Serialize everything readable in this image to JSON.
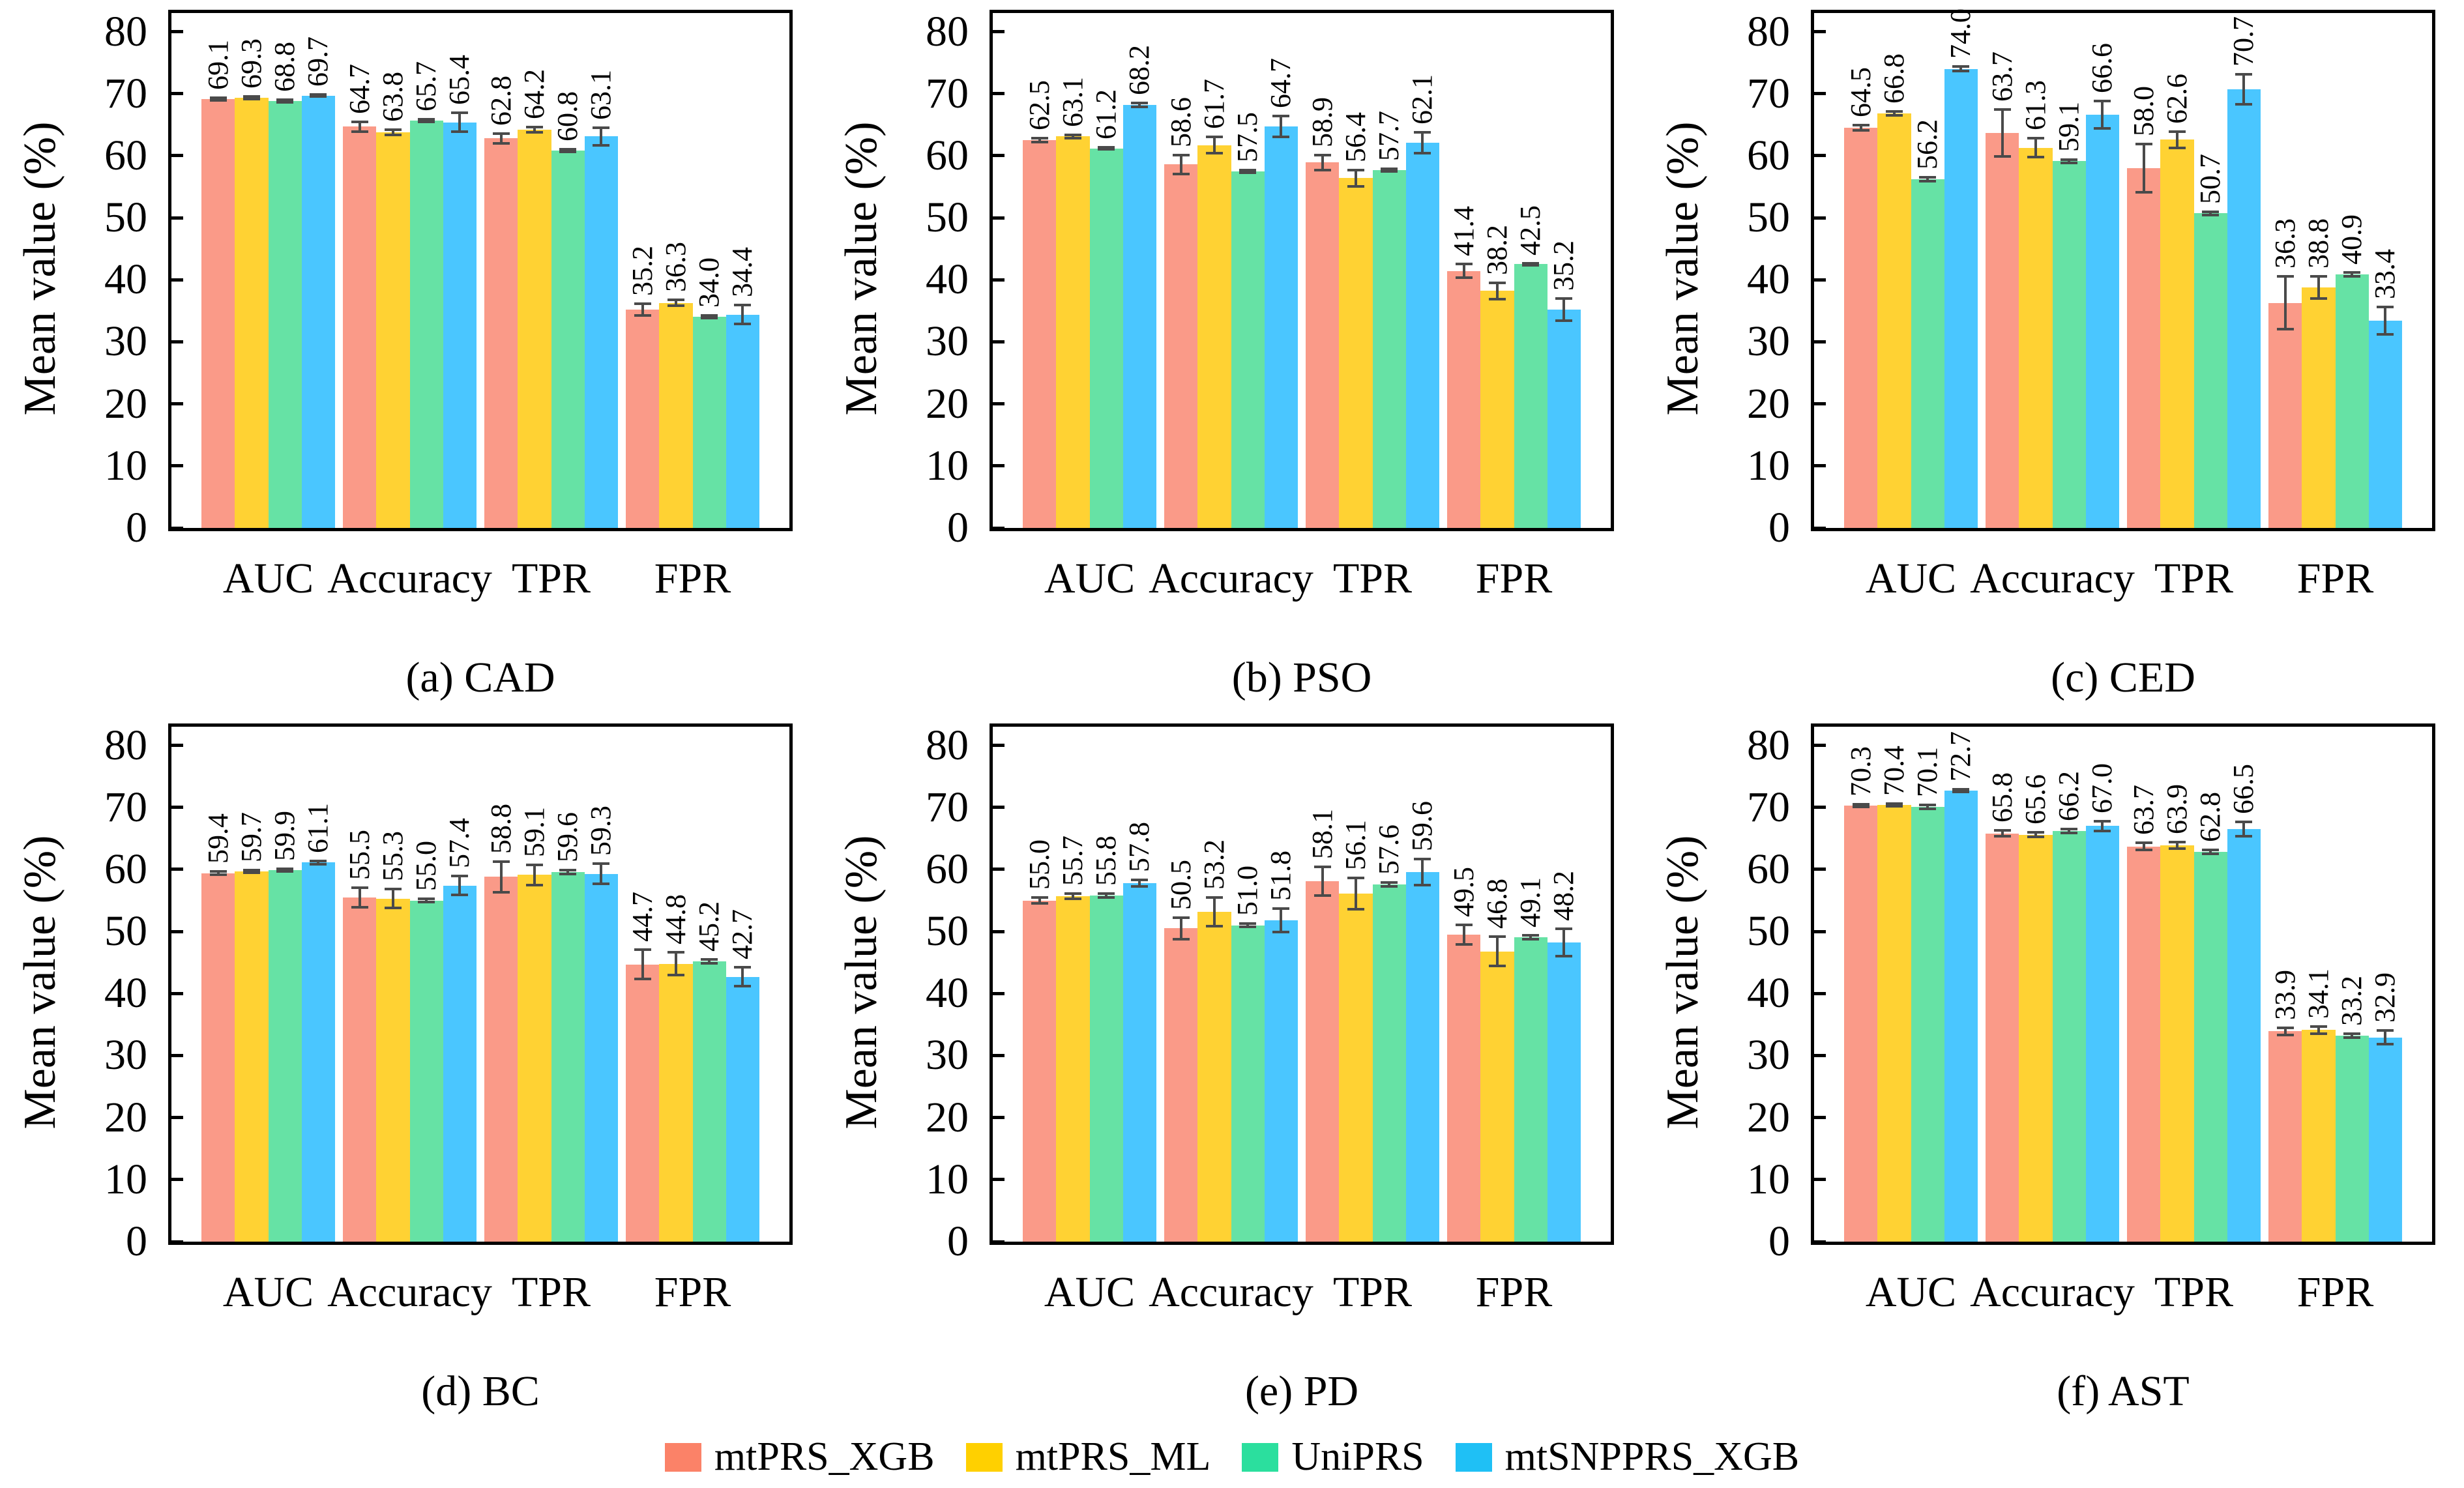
{
  "figure": {
    "ylabel": "Mean value (%)",
    "categories": [
      "AUC",
      "Accuracy",
      "TPR",
      "FPR"
    ],
    "ylim": [
      0,
      80
    ],
    "yticks": [
      0,
      10,
      20,
      30,
      40,
      50,
      60,
      70,
      80
    ],
    "grid": false,
    "error_bar_color": "#4a4a4a"
  },
  "legend": {
    "position": "bottom-center",
    "items": [
      {
        "label": "mtPRS_XGB",
        "color": "#FB8268"
      },
      {
        "label": "mtPRS_ML",
        "color": "#FFD000"
      },
      {
        "label": "UniPRS",
        "color": "#2BDF9E"
      },
      {
        "label": "mtSNPPRS_XGB",
        "color": "#1FC0F5"
      }
    ]
  },
  "chart_data": [
    {
      "type": "bar",
      "caption": "(a) CAD",
      "title": "CAD",
      "xlabel": "",
      "ylabel": "Mean value (%)",
      "ylim": [
        0,
        80
      ],
      "categories": [
        "AUC",
        "Accuracy",
        "TPR",
        "FPR"
      ],
      "series": [
        {
          "name": "mtPRS_XGB",
          "color": "#FA9A88",
          "values": [
            69.1,
            64.7,
            62.8,
            35.2
          ],
          "errors": [
            0.2,
            0.8,
            0.8,
            0.9
          ]
        },
        {
          "name": "mtPRS_ML",
          "color": "#FFD233",
          "values": [
            69.3,
            63.8,
            64.2,
            36.3
          ],
          "errors": [
            0.2,
            0.4,
            0.4,
            0.5
          ]
        },
        {
          "name": "UniPRS",
          "color": "#66E2A5",
          "values": [
            68.8,
            65.7,
            60.8,
            34.0
          ],
          "errors": [
            0.2,
            0.2,
            0.2,
            0.2
          ]
        },
        {
          "name": "mtSNPPRS_XGB",
          "color": "#4AC6FF",
          "values": [
            69.7,
            65.4,
            63.1,
            34.4
          ],
          "errors": [
            0.2,
            1.5,
            1.4,
            1.5
          ]
        }
      ]
    },
    {
      "type": "bar",
      "caption": "(b) PSO",
      "title": "PSO",
      "xlabel": "",
      "ylabel": "Mean value (%)",
      "ylim": [
        0,
        80
      ],
      "categories": [
        "AUC",
        "Accuracy",
        "TPR",
        "FPR"
      ],
      "series": [
        {
          "name": "mtPRS_XGB",
          "color": "#FA9A88",
          "values": [
            62.5,
            58.6,
            58.9,
            41.4
          ],
          "errors": [
            0.3,
            1.5,
            1.2,
            1.1
          ]
        },
        {
          "name": "mtPRS_ML",
          "color": "#FFD233",
          "values": [
            63.1,
            61.7,
            56.4,
            38.2
          ],
          "errors": [
            0.3,
            1.3,
            1.3,
            1.3
          ]
        },
        {
          "name": "UniPRS",
          "color": "#66E2A5",
          "values": [
            61.2,
            57.5,
            57.7,
            42.5
          ],
          "errors": [
            0.2,
            0.2,
            0.2,
            0.2
          ]
        },
        {
          "name": "mtSNPPRS_XGB",
          "color": "#4AC6FF",
          "values": [
            68.2,
            64.7,
            62.1,
            35.2
          ],
          "errors": [
            0.3,
            1.7,
            1.7,
            1.8
          ]
        }
      ]
    },
    {
      "type": "bar",
      "caption": "(c) CED",
      "title": "CED",
      "xlabel": "",
      "ylabel": "Mean value (%)",
      "ylim": [
        0,
        80
      ],
      "categories": [
        "AUC",
        "Accuracy",
        "TPR",
        "FPR"
      ],
      "series": [
        {
          "name": "mtPRS_XGB",
          "color": "#FA9A88",
          "values": [
            64.5,
            63.7,
            58.0,
            36.3
          ],
          "errors": [
            0.4,
            3.8,
            3.9,
            4.3
          ]
        },
        {
          "name": "mtPRS_ML",
          "color": "#FFD233",
          "values": [
            66.8,
            61.3,
            62.6,
            38.8
          ],
          "errors": [
            0.3,
            1.5,
            1.3,
            1.8
          ]
        },
        {
          "name": "UniPRS",
          "color": "#66E2A5",
          "values": [
            56.2,
            59.1,
            50.7,
            40.9
          ],
          "errors": [
            0.3,
            0.3,
            0.3,
            0.3
          ]
        },
        {
          "name": "mtSNPPRS_XGB",
          "color": "#4AC6FF",
          "values": [
            74.0,
            66.6,
            70.7,
            33.4
          ],
          "errors": [
            0.4,
            2.2,
            2.4,
            2.2
          ]
        }
      ]
    },
    {
      "type": "bar",
      "caption": "(d) BC",
      "title": "BC",
      "xlabel": "",
      "ylabel": "Mean value (%)",
      "ylim": [
        0,
        80
      ],
      "categories": [
        "AUC",
        "Accuracy",
        "TPR",
        "FPR"
      ],
      "series": [
        {
          "name": "mtPRS_XGB",
          "color": "#FA9A88",
          "values": [
            59.4,
            55.5,
            58.8,
            44.7
          ],
          "errors": [
            0.3,
            1.6,
            2.5,
            2.4
          ]
        },
        {
          "name": "mtPRS_ML",
          "color": "#FFD233",
          "values": [
            59.7,
            55.3,
            59.1,
            44.8
          ],
          "errors": [
            0.2,
            1.5,
            1.6,
            1.8
          ]
        },
        {
          "name": "UniPRS",
          "color": "#66E2A5",
          "values": [
            59.9,
            55.0,
            59.6,
            45.2
          ],
          "errors": [
            0.2,
            0.3,
            0.3,
            0.3
          ]
        },
        {
          "name": "mtSNPPRS_XGB",
          "color": "#4AC6FF",
          "values": [
            61.1,
            57.4,
            59.3,
            42.7
          ],
          "errors": [
            0.3,
            1.5,
            1.6,
            1.5
          ]
        }
      ]
    },
    {
      "type": "bar",
      "caption": "(e) PD",
      "title": "PD",
      "xlabel": "",
      "ylabel": "Mean value (%)",
      "ylim": [
        0,
        80
      ],
      "categories": [
        "AUC",
        "Accuracy",
        "TPR",
        "FPR"
      ],
      "series": [
        {
          "name": "mtPRS_XGB",
          "color": "#FA9A88",
          "values": [
            55.0,
            50.5,
            58.1,
            49.5
          ],
          "errors": [
            0.5,
            1.7,
            2.3,
            1.6
          ]
        },
        {
          "name": "mtPRS_ML",
          "color": "#FFD233",
          "values": [
            55.7,
            53.2,
            56.1,
            46.8
          ],
          "errors": [
            0.4,
            2.3,
            2.5,
            2.4
          ]
        },
        {
          "name": "UniPRS",
          "color": "#66E2A5",
          "values": [
            55.8,
            51.0,
            57.6,
            49.1
          ],
          "errors": [
            0.3,
            0.3,
            0.3,
            0.3
          ]
        },
        {
          "name": "mtSNPPRS_XGB",
          "color": "#4AC6FF",
          "values": [
            57.8,
            51.8,
            59.6,
            48.2
          ],
          "errors": [
            0.5,
            1.9,
            2.1,
            2.2
          ]
        }
      ]
    },
    {
      "type": "bar",
      "caption": "(f) AST",
      "title": "AST",
      "xlabel": "",
      "ylabel": "Mean value (%)",
      "ylim": [
        0,
        80
      ],
      "categories": [
        "AUC",
        "Accuracy",
        "TPR",
        "FPR"
      ],
      "series": [
        {
          "name": "mtPRS_XGB",
          "color": "#FA9A88",
          "values": [
            70.3,
            65.8,
            63.7,
            33.9
          ],
          "errors": [
            0.2,
            0.5,
            0.6,
            0.6
          ]
        },
        {
          "name": "mtPRS_ML",
          "color": "#FFD233",
          "values": [
            70.4,
            65.6,
            63.9,
            34.1
          ],
          "errors": [
            0.2,
            0.4,
            0.5,
            0.6
          ]
        },
        {
          "name": "UniPRS",
          "color": "#66E2A5",
          "values": [
            70.1,
            66.2,
            62.8,
            33.2
          ],
          "errors": [
            0.3,
            0.3,
            0.3,
            0.3
          ]
        },
        {
          "name": "mtSNPPRS_XGB",
          "color": "#4AC6FF",
          "values": [
            72.7,
            67.0,
            66.5,
            32.9
          ],
          "errors": [
            0.2,
            0.8,
            1.2,
            1.1
          ]
        }
      ]
    }
  ]
}
